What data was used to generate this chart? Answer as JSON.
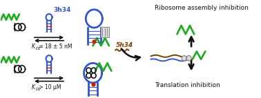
{
  "bg_color": "#ffffff",
  "text_3h34": "3h34",
  "text_3h34_color": "#3355cc",
  "text_5h34": "5h34",
  "text_5h34_color": "#7B3F00",
  "text_kd1_val": " = 18 ± 5 nM",
  "text_kd2_val": " > 10 μM",
  "text_ribosome": "Ribosome assembly inhibition",
  "text_translation": "Translation inhibition",
  "green_color": "#22aa22",
  "blue_color": "#3355cc",
  "black_color": "#111111",
  "red_color": "#cc2200",
  "gray_color": "#999999",
  "brown_color": "#7B3F00",
  "fig_width": 3.78,
  "fig_height": 1.42,
  "dpi": 100
}
